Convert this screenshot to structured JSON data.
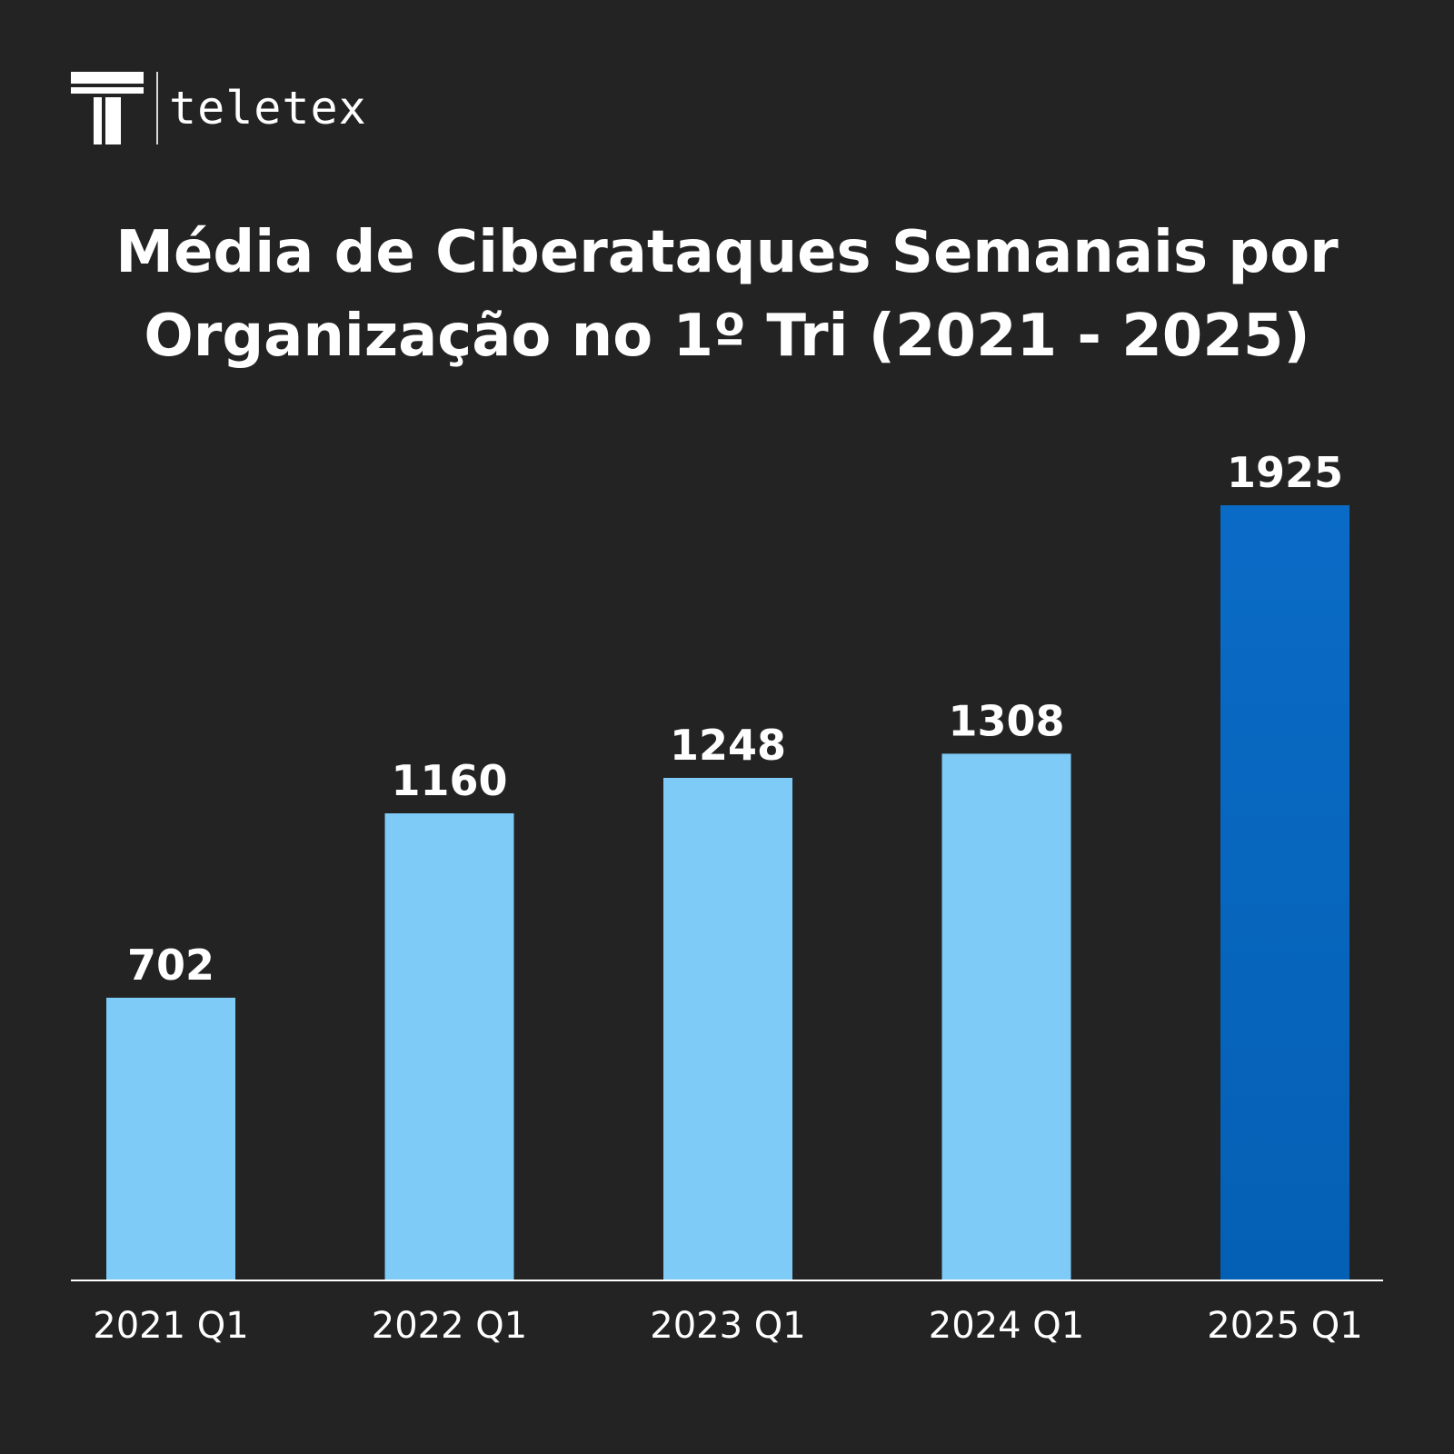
{
  "brand": {
    "name": "teletex",
    "logo_icon": "teletex-t-icon"
  },
  "colors": {
    "background": "#232323",
    "bar": "#7ecbf8",
    "bar_highlight_top": "#0a6bc6",
    "bar_highlight_bottom": "#0460b4",
    "axis": "#ffffff",
    "text": "#ffffff"
  },
  "chart_data": {
    "type": "bar",
    "title": "Média de Ciberataques Semanais por Organização no 1º Tri (2021 - 2025)",
    "title_lines": [
      "Média de Ciberataques Semanais por",
      "Organização no 1º Tri (2021 - 2025)"
    ],
    "xlabel": "",
    "ylabel": "",
    "categories": [
      "2021 Q1",
      "2022 Q1",
      "2023 Q1",
      "2024 Q1",
      "2025 Q1"
    ],
    "values": [
      702,
      1160,
      1248,
      1308,
      1925
    ],
    "highlight_index": 4,
    "ylim": [
      0,
      1925
    ],
    "grid": false,
    "legend": "none",
    "data_labels": true
  }
}
